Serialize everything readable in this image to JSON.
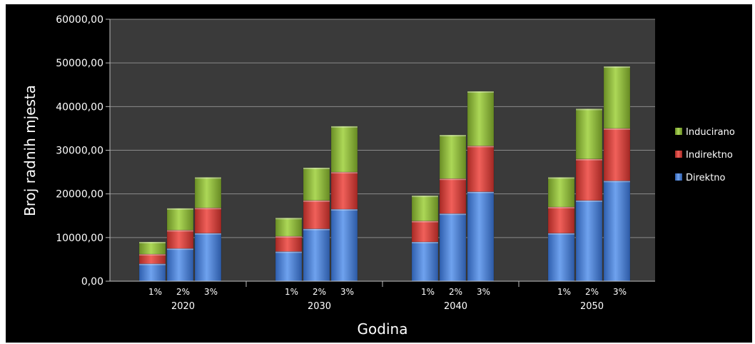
{
  "chart_data": {
    "type": "bar",
    "stacked": true,
    "title": "",
    "xlabel": "Godina",
    "ylabel": "Broj radnih mjesta",
    "ylim": [
      0,
      60000
    ],
    "yticks": [
      0,
      10000,
      20000,
      30000,
      40000,
      50000,
      60000
    ],
    "ytick_labels": [
      "0,00",
      "10000,00",
      "20000,00",
      "30000,00",
      "40000,00",
      "50000,00",
      "60000,00"
    ],
    "groups": [
      "2020",
      "2030",
      "2040",
      "2050"
    ],
    "subcategories": [
      "1%",
      "2%",
      "3%"
    ],
    "series": [
      {
        "name": "Direktno",
        "color": "#4a7fd6",
        "values": [
          [
            4000,
            7500,
            11000
          ],
          [
            6800,
            12000,
            16500
          ],
          [
            9000,
            15500,
            20500
          ],
          [
            11000,
            18500,
            23000
          ]
        ]
      },
      {
        "name": "Indirektno",
        "color": "#d8403a",
        "values": [
          [
            2200,
            4200,
            5800
          ],
          [
            3500,
            6500,
            8500
          ],
          [
            4800,
            8000,
            10500
          ],
          [
            6000,
            9500,
            12000
          ]
        ]
      },
      {
        "name": "Inducirano",
        "color": "#8fba3c",
        "values": [
          [
            2800,
            5000,
            7000
          ],
          [
            4200,
            7500,
            10500
          ],
          [
            5800,
            10000,
            12500
          ],
          [
            6800,
            11500,
            14200
          ]
        ]
      }
    ],
    "legend": [
      "Inducirano",
      "Indirektno",
      "Direktno"
    ],
    "legend_position": "right",
    "grid": true
  }
}
